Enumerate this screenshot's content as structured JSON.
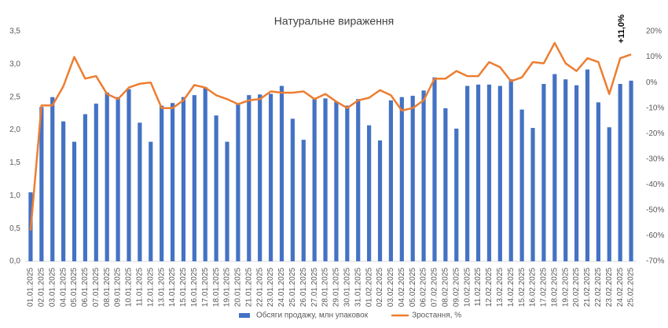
{
  "chart_data": {
    "type": "bar",
    "title": "Натуральне вираження",
    "categories": [
      "01.01.2025",
      "02.01.2025",
      "03.01.2025",
      "04.01.2025",
      "05.01.2025",
      "06.01.2025",
      "07.01.2025",
      "08.01.2025",
      "09.01.2025",
      "10.01.2025",
      "11.01.2025",
      "12.01.2025",
      "13.01.2025",
      "14.01.2025",
      "15.01.2025",
      "16.01.2025",
      "17.01.2025",
      "18.01.2025",
      "19.01.2025",
      "20.01.2025",
      "21.01.2025",
      "22.01.2025",
      "23.01.2025",
      "24.01.2025",
      "25.01.2025",
      "26.01.2025",
      "27.01.2025",
      "28.01.2025",
      "29.01.2025",
      "30.01.2025",
      "31.01.2025",
      "01.02.2025",
      "02.02.2025",
      "03.02.2025",
      "04.02.2025",
      "05.02.2025",
      "06.02.2025",
      "07.02.2025",
      "08.02.2025",
      "09.02.2025",
      "10.02.2025",
      "11.02.2025",
      "12.02.2025",
      "13.02.2025",
      "14.02.2025",
      "15.02.2025",
      "16.02.2025",
      "17.02.2025",
      "18.02.2025",
      "19.02.2025",
      "20.02.2025",
      "21.02.2025",
      "22.02.2025",
      "23.02.2025",
      "24.02.2025",
      "25.02.2025"
    ],
    "series": [
      {
        "name": "Обсяги продажу, млн упаковок",
        "color": "#4472c4",
        "type": "bar",
        "values": [
          1.05,
          2.35,
          2.5,
          2.13,
          1.82,
          2.24,
          2.4,
          2.57,
          2.5,
          2.62,
          2.11,
          1.82,
          2.37,
          2.41,
          2.5,
          2.53,
          2.65,
          2.22,
          1.82,
          2.4,
          2.53,
          2.54,
          2.55,
          2.67,
          2.17,
          1.85,
          2.47,
          2.48,
          2.43,
          2.37,
          2.47,
          2.07,
          1.84,
          2.45,
          2.5,
          2.52,
          2.6,
          2.8,
          2.33,
          2.02,
          2.67,
          2.69,
          2.69,
          2.67,
          2.77,
          2.31,
          2.03,
          2.7,
          2.85,
          2.77,
          2.68,
          2.92,
          2.42,
          2.04,
          2.7,
          2.75
        ]
      },
      {
        "name": "Зростання, %",
        "color": "#ed7d31",
        "type": "line",
        "axis": "y2",
        "values": [
          -58,
          -9,
          -9,
          -1.5,
          10,
          1.5,
          2.5,
          -4.5,
          -6.5,
          -2,
          -0.5,
          0,
          -10,
          -10,
          -7,
          -1,
          -2,
          -5,
          -6.5,
          -8.5,
          -7,
          -6.5,
          -3.5,
          -4,
          -4,
          -3.5,
          -6.5,
          -4.5,
          -7.5,
          -10,
          -7,
          -6,
          -3,
          -5,
          -11,
          -10,
          -7,
          1.5,
          1.5,
          4.5,
          2.5,
          2.5,
          8,
          6,
          0.5,
          2,
          8,
          7.5,
          15.5,
          7.5,
          4.5,
          9.5,
          8,
          -4.5,
          9.5,
          11
        ]
      }
    ],
    "annotation": "+11,0%",
    "ylim": [
      0,
      3.5
    ],
    "yticks": [
      {
        "value": 0,
        "label": "0,0"
      },
      {
        "value": 0.5,
        "label": "0,5"
      },
      {
        "value": 1,
        "label": "1,0"
      },
      {
        "value": 1.5,
        "label": "1,5"
      },
      {
        "value": 2,
        "label": "2,0"
      },
      {
        "value": 2.5,
        "label": "2,5"
      },
      {
        "value": 3,
        "label": "3,0"
      },
      {
        "value": 3.5,
        "label": "3,5"
      }
    ],
    "y2lim": [
      -70,
      20
    ],
    "y2ticks": [
      {
        "value": -70,
        "label": "-70%"
      },
      {
        "value": -60,
        "label": "-60%"
      },
      {
        "value": -50,
        "label": "-50%"
      },
      {
        "value": -40,
        "label": "-40%"
      },
      {
        "value": -30,
        "label": "-30%"
      },
      {
        "value": -20,
        "label": "-20%"
      },
      {
        "value": -10,
        "label": "-10%"
      },
      {
        "value": 0,
        "label": "0%"
      },
      {
        "value": 10,
        "label": "10%"
      },
      {
        "value": 20,
        "label": "20%"
      }
    ],
    "grid": false,
    "legend": "bottom"
  }
}
